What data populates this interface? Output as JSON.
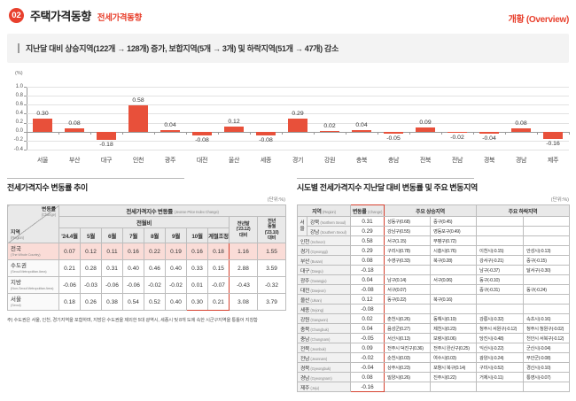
{
  "header": {
    "badge": "02",
    "title": "주택가격동향",
    "category": "전세가격동향",
    "overview": "개황 (Overview)"
  },
  "summary": {
    "text": "지난달 대비 상승지역(122개 → 128개) 증가, 보합지역(5개 → 3개) 및 하락지역(51개 → 47개) 감소"
  },
  "chart_data": {
    "type": "bar",
    "unit_label": "(%)",
    "categories": [
      "서울",
      "부산",
      "대구",
      "인천",
      "광주",
      "대전",
      "울산",
      "세종",
      "경기",
      "강원",
      "충북",
      "충남",
      "전북",
      "전남",
      "경북",
      "경남",
      "제주"
    ],
    "values": [
      0.3,
      0.08,
      -0.18,
      0.58,
      0.04,
      -0.08,
      0.12,
      -0.08,
      0.29,
      0.02,
      0.04,
      -0.05,
      0.09,
      -0.02,
      -0.04,
      0.08,
      -0.16
    ],
    "ylim": [
      -0.4,
      1.0
    ],
    "ytick_step": 0.2,
    "grid": true,
    "bar_color": "#e8503a"
  },
  "trend_table": {
    "title": "전세가격지수 변동률 추이",
    "unit": "(단위:%)",
    "corner": {
      "change_kr": "변동률",
      "change_en": "(Change)",
      "region_kr": "지역",
      "region_en": "(Region)"
    },
    "group_header": "전세가격지수 변동률",
    "group_header_en": "(Jeonse Price Index Change)",
    "mom_header": "전월비",
    "col_headers": [
      "'24.4월",
      "5월",
      "6월",
      "7월",
      "8월",
      "9월",
      "10월",
      "계절조정"
    ],
    "year_cols": [
      [
        "전년말",
        "('23.12)",
        "대비"
      ],
      [
        "전년",
        "동월",
        "('23.10)",
        "대비"
      ]
    ],
    "rows": [
      {
        "kr": "전국",
        "en": "(The Whole Country)",
        "highlight": true,
        "values": [
          "0.07",
          "0.12",
          "0.11",
          "0.16",
          "0.22",
          "0.19",
          "0.16",
          "0.18",
          "1.16",
          "1.55"
        ]
      },
      {
        "kr": "수도권",
        "en": "(Seoul Metropolitan Area)",
        "highlight": false,
        "values": [
          "0.21",
          "0.28",
          "0.31",
          "0.40",
          "0.46",
          "0.40",
          "0.33",
          "0.15",
          "2.88",
          "3.59"
        ]
      },
      {
        "kr": "지방",
        "en": "(Non-Seoul Metropolitan Area)",
        "highlight": false,
        "values": [
          "-0.06",
          "-0.03",
          "-0.06",
          "-0.06",
          "-0.02",
          "-0.02",
          "0.01",
          "-0.07",
          "-0.43",
          "-0.32"
        ]
      },
      {
        "kr": "서울",
        "en": "(Seoul)",
        "highlight": false,
        "values": [
          "0.18",
          "0.26",
          "0.38",
          "0.54",
          "0.52",
          "0.40",
          "0.30",
          "0.21",
          "3.08",
          "3.79"
        ]
      }
    ],
    "footnote": "주) 수도권은 서울, 인천, 경기지역을 포함하며, 지방은 수도권을 제외한 5대 광역시, 세종시 및 8개 도에 속한 시군구지역을 통틀어 지칭함"
  },
  "region_table": {
    "title": "시도별 전세가격지수 지난달 대비 변동률 및 주요 변동지역",
    "unit": "(단위:%)",
    "headers": {
      "region_kr": "지역",
      "region_en": "(Region)",
      "change_kr": "변동률",
      "change_en": "(Change)",
      "up": "주요 상승지역",
      "down": "주요 하락지역"
    },
    "rows": [
      {
        "strip": {
          "label": "서울",
          "span": 2
        },
        "kr": "강북",
        "en": "(Northern Seoul)",
        "change": "0.31",
        "up": [
          "성동구(0.68)",
          "중구(0.45)"
        ],
        "down": [
          "",
          ""
        ]
      },
      {
        "in_strip": true,
        "kr": "강남",
        "en": "(Southern Seoul)",
        "change": "0.29",
        "up": [
          "강남구(0.55)",
          "영등포구(0.49)"
        ],
        "down": [
          "",
          ""
        ]
      },
      {
        "kr": "인천",
        "en": "(Incheon)",
        "change": "0.58",
        "up": [
          "서구(1.15)",
          "부평구(0.72)"
        ],
        "down": [
          "",
          ""
        ]
      },
      {
        "kr": "경기",
        "en": "(Gyeonggi)",
        "change": "0.29",
        "up": [
          "구리시(0.78)",
          "시흥시(0.76)"
        ],
        "down": [
          "이천시(-0.15)",
          "안성시(-0.13)"
        ]
      },
      {
        "kr": "부산",
        "en": "(Busan)",
        "change": "0.08",
        "up": [
          "수영구(0.33)",
          "북구(0.28)"
        ],
        "down": [
          "강서구(-0.21)",
          "중구(-0.15)"
        ]
      },
      {
        "kr": "대구",
        "en": "(Daegu)",
        "change": "-0.18",
        "up": [
          "",
          ""
        ],
        "down": [
          "남구(-0.37)",
          "달서구(-0.30)"
        ]
      },
      {
        "kr": "광주",
        "en": "(Gwangju)",
        "change": "0.04",
        "up": [
          "남구(0.14)",
          "서구(0.06)"
        ],
        "down": [
          "동구(-0.10)",
          ""
        ]
      },
      {
        "kr": "대전",
        "en": "(Daejeon)",
        "change": "-0.08",
        "up": [
          "서구(0.07)",
          ""
        ],
        "down": [
          "중구(-0.31)",
          "동구(-0.24)"
        ]
      },
      {
        "kr": "울산",
        "en": "(Ulsan)",
        "change": "0.12",
        "up": [
          "동구(0.22)",
          "북구(0.16)"
        ],
        "down": [
          "",
          ""
        ]
      },
      {
        "kr": "세종",
        "en": "(Sejong)",
        "change": "-0.08",
        "up": [
          "",
          ""
        ],
        "down": [
          "",
          ""
        ]
      },
      {
        "kr": "강원",
        "en": "(Gangwon)",
        "change": "0.02",
        "up": [
          "춘천시(0.26)",
          "동해시(0.19)"
        ],
        "down": [
          "강릉시(-0.32)",
          "속초시(-0.16)"
        ]
      },
      {
        "kr": "충북",
        "en": "(Chungbuk)",
        "change": "0.04",
        "up": [
          "음성군(0.27)",
          "제천시(0.23)"
        ],
        "down": [
          "청주시 서원구(-0.12)",
          "청주시 청원구(-0.02)"
        ]
      },
      {
        "kr": "충남",
        "en": "(Chungnam)",
        "change": "-0.05",
        "up": [
          "서산시(0.13)",
          "보령시(0.06)"
        ],
        "down": [
          "당진시(-0.48)",
          "천안시 서북구(-0.12)"
        ]
      },
      {
        "kr": "전북",
        "en": "(Jeonbuk)",
        "change": "0.09",
        "up": [
          "전주시 덕진구(0.36)",
          "전주시 완산구(0.25)"
        ],
        "down": [
          "익산시(-0.22)",
          "군산시(-0.04)"
        ]
      },
      {
        "kr": "전남",
        "en": "(Jeonnam)",
        "change": "-0.02",
        "up": [
          "순천시(0.03)",
          "여수시(0.03)"
        ],
        "down": [
          "광양시(-0.24)",
          "무안군(-0.08)"
        ]
      },
      {
        "kr": "경북",
        "en": "(Gyeongbuk)",
        "change": "-0.04",
        "up": [
          "상주시(0.23)",
          "포항시 북구(0.14)"
        ],
        "down": [
          "구미시(-0.52)",
          "경산시(-0.10)"
        ]
      },
      {
        "kr": "경남",
        "en": "(Gyeongnam)",
        "change": "0.08",
        "up": [
          "밀양시(0.26)",
          "진주시(0.22)"
        ],
        "down": [
          "거제시(-0.11)",
          "통영시(-0.07)"
        ]
      },
      {
        "kr": "제주",
        "en": "(Jeju)",
        "change": "-0.16",
        "up": [
          "",
          ""
        ],
        "down": [
          "",
          ""
        ]
      }
    ]
  }
}
